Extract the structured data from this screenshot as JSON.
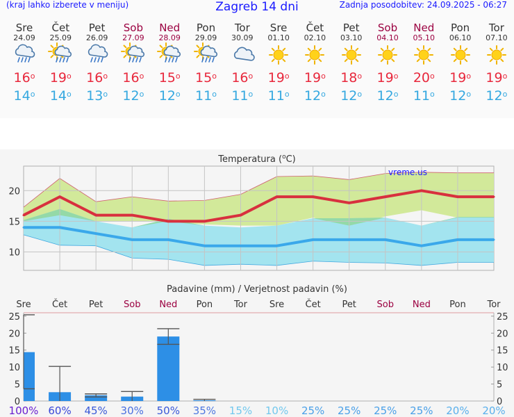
{
  "header": {
    "menu_hint": "(kraj lahko izberete v meniju)",
    "title": "Zagreb 14 dni",
    "updated": "Zadnja posodobitev: 24.09.2025 - 06:27"
  },
  "days": [
    {
      "name": "Sre",
      "date": "24.09",
      "weekend": false,
      "icon": "cloud-rain-icon",
      "max": "16",
      "min": "14"
    },
    {
      "name": "Čet",
      "date": "25.09",
      "weekend": false,
      "icon": "sun-cloud-rain-icon",
      "max": "19",
      "min": "14"
    },
    {
      "name": "Pet",
      "date": "26.09",
      "weekend": false,
      "icon": "cloud-rain-icon",
      "max": "16",
      "min": "13"
    },
    {
      "name": "Sob",
      "date": "27.09",
      "weekend": true,
      "icon": "sun-cloud-rain-icon",
      "max": "16",
      "min": "12"
    },
    {
      "name": "Ned",
      "date": "28.09",
      "weekend": true,
      "icon": "sun-cloud-rain-icon",
      "max": "15",
      "min": "12"
    },
    {
      "name": "Pon",
      "date": "29.09",
      "weekend": false,
      "icon": "sun-cloud-rain-icon",
      "max": "15",
      "min": "11"
    },
    {
      "name": "Tor",
      "date": "30.09",
      "weekend": false,
      "icon": "cloud-icon",
      "max": "16",
      "min": "11"
    },
    {
      "name": "Sre",
      "date": "01.10",
      "weekend": false,
      "icon": "sun-icon",
      "max": "19",
      "min": "11"
    },
    {
      "name": "Čet",
      "date": "02.10",
      "weekend": false,
      "icon": "sun-icon",
      "max": "19",
      "min": "12"
    },
    {
      "name": "Pet",
      "date": "03.10",
      "weekend": false,
      "icon": "sun-icon",
      "max": "18",
      "min": "12"
    },
    {
      "name": "Sob",
      "date": "04.10",
      "weekend": true,
      "icon": "sun-icon",
      "max": "19",
      "min": "12"
    },
    {
      "name": "Ned",
      "date": "05.10",
      "weekend": true,
      "icon": "sun-icon",
      "max": "20",
      "min": "11"
    },
    {
      "name": "Pon",
      "date": "06.10",
      "weekend": false,
      "icon": "sun-icon",
      "max": "19",
      "min": "12"
    },
    {
      "name": "Tor",
      "date": "07.10",
      "weekend": false,
      "icon": "sun-icon",
      "max": "19",
      "min": "12"
    }
  ],
  "colors": {
    "max": "#e8283c",
    "min": "#35a8e0",
    "max_band": "#d2e99a",
    "min_band": "#a3e4ef",
    "overlap": "#8fd590",
    "precip": "#2d8fe6",
    "weekend": "#9b0040"
  },
  "chart_data": [
    {
      "type": "line",
      "title": "Temperatura (°C)",
      "watermark": "vreme.us",
      "ylim": [
        7,
        24
      ],
      "yticks": [
        10,
        15,
        20
      ],
      "grid": true,
      "x": [
        1,
        2,
        3,
        4,
        5,
        6,
        7,
        8,
        9,
        10,
        11,
        12,
        13,
        14
      ],
      "series": [
        {
          "role": "max",
          "values": [
            16,
            19,
            16,
            16,
            15,
            15,
            16,
            19,
            19,
            18,
            19,
            20,
            19,
            19
          ],
          "band_low": [
            15,
            16,
            15,
            15,
            15,
            14.5,
            14.3,
            14.3,
            15.6,
            14.3,
            15.8,
            16.8,
            15.6,
            15.6
          ],
          "band_high": [
            17.3,
            22,
            18.2,
            19,
            18.3,
            18.4,
            19.4,
            22.3,
            22.4,
            21.8,
            22.8,
            23,
            22.9,
            22.9
          ]
        },
        {
          "role": "min",
          "values": [
            14,
            14,
            13,
            12,
            12,
            11,
            11,
            11,
            12,
            12,
            12,
            11,
            12,
            12
          ],
          "band_low": [
            12.8,
            11.1,
            11,
            9,
            8.8,
            7.8,
            8,
            7.8,
            8.5,
            8.3,
            8.2,
            7.8,
            8.3,
            8.3
          ],
          "band_high": [
            15.2,
            17,
            15,
            14,
            15.4,
            14.3,
            14,
            14.3,
            15.5,
            15.5,
            15.6,
            14.3,
            15.7,
            15.7
          ]
        }
      ]
    },
    {
      "type": "bar",
      "title": "Padavine (mm) / Verjetnost padavin (%)",
      "categories": [
        "Sre",
        "Čet",
        "Pet",
        "Sob",
        "Ned",
        "Pon",
        "Tor",
        "Sre",
        "Čet",
        "Pet",
        "Sob",
        "Ned",
        "Pon",
        "Tor"
      ],
      "weekend": [
        false,
        false,
        false,
        true,
        true,
        false,
        false,
        false,
        false,
        false,
        true,
        true,
        false,
        false
      ],
      "ylim": [
        0,
        26
      ],
      "yticks": [
        0,
        5,
        10,
        15,
        20,
        25
      ],
      "values": [
        14.4,
        2.6,
        1.7,
        1.3,
        19,
        0.2,
        0,
        0,
        0,
        0,
        0,
        0,
        0,
        0
      ],
      "range_low": [
        3.6,
        0,
        1.2,
        0,
        16.7,
        0,
        null,
        null,
        null,
        null,
        null,
        null,
        null,
        null
      ],
      "range_high": [
        25.4,
        10.2,
        2.1,
        2.8,
        21.3,
        0.5,
        null,
        null,
        null,
        null,
        null,
        null,
        null,
        null
      ],
      "probability": [
        "100%",
        "60%",
        "45%",
        "30%",
        "50%",
        "35%",
        "15%",
        "10%",
        "25%",
        "25%",
        "25%",
        "25%",
        "20%",
        "20%"
      ],
      "probability_colors": [
        "#6a1fd0",
        "#3a48d8",
        "#3a5ad8",
        "#4a70e0",
        "#3a58d8",
        "#4e78e0",
        "#72c8ee",
        "#72c8ee",
        "#4aa0e8",
        "#4aa0e8",
        "#4aa0e8",
        "#4aa0e8",
        "#5ab0ec",
        "#5ab0ec"
      ]
    }
  ]
}
